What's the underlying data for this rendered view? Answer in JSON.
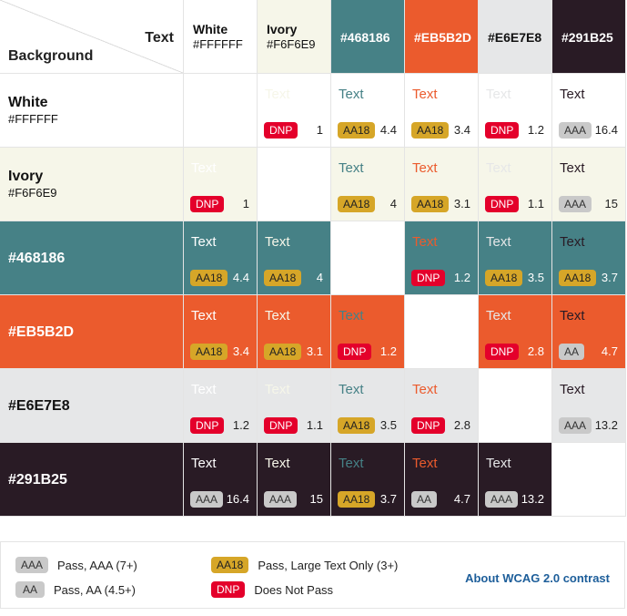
{
  "header": {
    "text_label": "Text",
    "background_label": "Background"
  },
  "colors": [
    {
      "name": "White",
      "hex": "#FFFFFF"
    },
    {
      "name": "Ivory",
      "hex": "#F6F6E9"
    },
    {
      "name": "#468186",
      "hex": ""
    },
    {
      "name": "#EB5B2D",
      "hex": ""
    },
    {
      "name": "#E6E7E8",
      "hex": ""
    },
    {
      "name": "#291B25",
      "hex": ""
    }
  ],
  "color_values": [
    "#FFFFFF",
    "#F6F6E9",
    "#468186",
    "#EB5B2D",
    "#E6E7E8",
    "#291B25"
  ],
  "sample_text": "Text",
  "matrix": [
    [
      null,
      {
        "badge": "DNP",
        "ratio": "1"
      },
      {
        "badge": "AA18",
        "ratio": "4.4"
      },
      {
        "badge": "AA18",
        "ratio": "3.4"
      },
      {
        "badge": "DNP",
        "ratio": "1.2"
      },
      {
        "badge": "AAA",
        "ratio": "16.4"
      }
    ],
    [
      {
        "badge": "DNP",
        "ratio": "1"
      },
      null,
      {
        "badge": "AA18",
        "ratio": "4"
      },
      {
        "badge": "AA18",
        "ratio": "3.1"
      },
      {
        "badge": "DNP",
        "ratio": "1.1"
      },
      {
        "badge": "AAA",
        "ratio": "15"
      }
    ],
    [
      {
        "badge": "AA18",
        "ratio": "4.4"
      },
      {
        "badge": "AA18",
        "ratio": "4"
      },
      null,
      {
        "badge": "DNP",
        "ratio": "1.2"
      },
      {
        "badge": "AA18",
        "ratio": "3.5"
      },
      {
        "badge": "AA18",
        "ratio": "3.7"
      }
    ],
    [
      {
        "badge": "AA18",
        "ratio": "3.4"
      },
      {
        "badge": "AA18",
        "ratio": "3.1"
      },
      {
        "badge": "DNP",
        "ratio": "1.2"
      },
      null,
      {
        "badge": "DNP",
        "ratio": "2.8"
      },
      {
        "badge": "AA",
        "ratio": "4.7"
      }
    ],
    [
      {
        "badge": "DNP",
        "ratio": "1.2"
      },
      {
        "badge": "DNP",
        "ratio": "1.1"
      },
      {
        "badge": "AA18",
        "ratio": "3.5"
      },
      {
        "badge": "DNP",
        "ratio": "2.8"
      },
      null,
      {
        "badge": "AAA",
        "ratio": "13.2"
      }
    ],
    [
      {
        "badge": "AAA",
        "ratio": "16.4"
      },
      {
        "badge": "AAA",
        "ratio": "15"
      },
      {
        "badge": "AA18",
        "ratio": "3.7"
      },
      {
        "badge": "AA",
        "ratio": "4.7"
      },
      {
        "badge": "AAA",
        "ratio": "13.2"
      },
      null
    ]
  ],
  "legend": {
    "aaa": {
      "badge": "AAA",
      "label": "Pass, AAA (7+)"
    },
    "aa": {
      "badge": "AA",
      "label": "Pass, AA (4.5+)"
    },
    "aa18": {
      "badge": "AA18",
      "label": "Pass, Large Text Only (3+)"
    },
    "dnp": {
      "badge": "DNP",
      "label": "Does Not Pass"
    },
    "about_link": "About WCAG 2.0 contrast"
  }
}
